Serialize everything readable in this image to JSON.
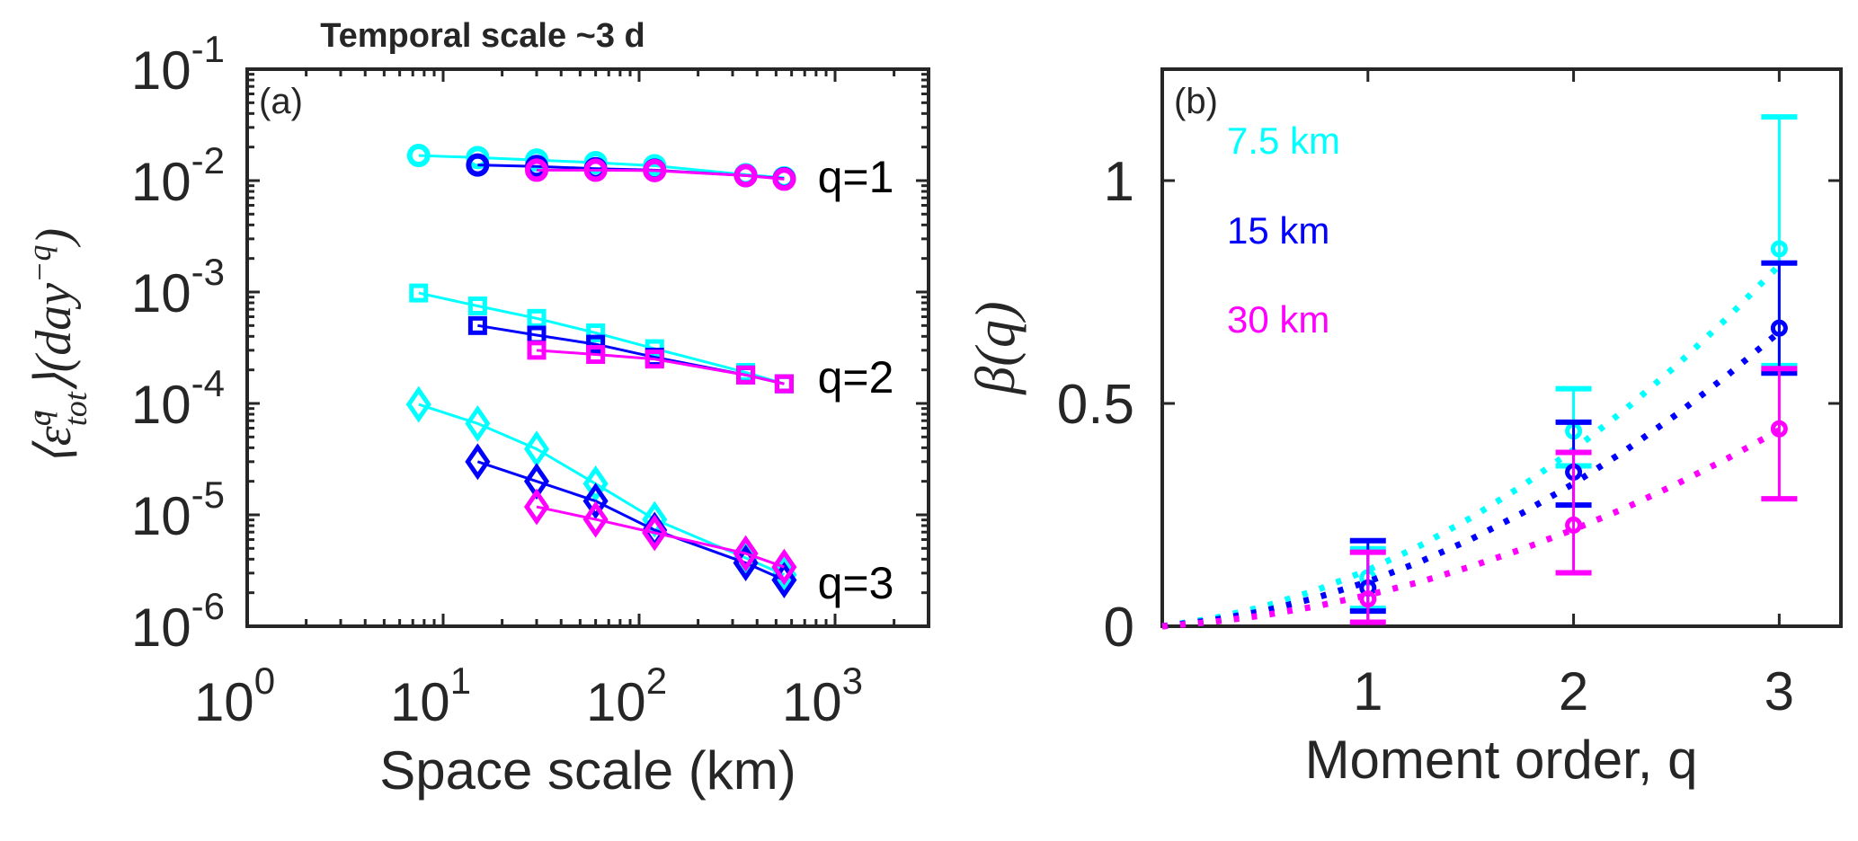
{
  "title": "Temporal scale ~3 d",
  "colors": {
    "7.5 km": "#00FFFF",
    "15 km": "#0000FF",
    "30 km": "#FF00FF",
    "axis": "#262626"
  },
  "chart_data": [
    {
      "panel": "(a)",
      "type": "line",
      "xscale": "log",
      "yscale": "log",
      "xlim": [
        1,
        3000
      ],
      "ylim": [
        1e-06,
        0.1
      ],
      "grid": false,
      "xlabel": "Space scale (km)",
      "ylabel": "⟨ε̇^q_tot⟩(day^−q)",
      "ylabel_parts": [
        {
          "t": "⟨ε̇",
          "r": "base"
        },
        {
          "t": "q",
          "r": "sup"
        },
        {
          "t": "tot",
          "r": "sub"
        },
        {
          "t": "⟩(day",
          "r": "base"
        },
        {
          "t": "−q",
          "r": "sup"
        },
        {
          "t": ")",
          "r": "base"
        }
      ],
      "xticks": [
        {
          "v": 1,
          "base": "10",
          "exp": "0"
        },
        {
          "v": 10,
          "base": "10",
          "exp": "1"
        },
        {
          "v": 100,
          "base": "10",
          "exp": "2"
        },
        {
          "v": 1000,
          "base": "10",
          "exp": "3"
        }
      ],
      "yticks": [
        {
          "v": 0.1,
          "base": "10",
          "exp": "-1"
        },
        {
          "v": 0.01,
          "base": "10",
          "exp": "-2"
        },
        {
          "v": 0.001,
          "base": "10",
          "exp": "-3"
        },
        {
          "v": 0.0001,
          "base": "10",
          "exp": "-4"
        },
        {
          "v": 1e-05,
          "base": "10",
          "exp": "-5"
        },
        {
          "v": 1e-06,
          "base": "10",
          "exp": "-6"
        }
      ],
      "groups": [
        {
          "label": "q=1",
          "marker": "circle",
          "lines": [
            {
              "series": "7.5 km",
              "x": [
                7.5,
                15,
                30,
                60,
                120,
                350,
                550
              ],
              "y": [
                0.0168,
                0.0161,
                0.0153,
                0.0145,
                0.0136,
                0.0113,
                0.0106
              ]
            },
            {
              "series": "15 km",
              "x": [
                15,
                30,
                60,
                120,
                350,
                550
              ],
              "y": [
                0.0138,
                0.0134,
                0.0128,
                0.0124,
                0.0111,
                0.0104
              ]
            },
            {
              "series": "30 km",
              "x": [
                30,
                60,
                120,
                350,
                550
              ],
              "y": [
                0.0124,
                0.0124,
                0.0123,
                0.0111,
                0.0103
              ]
            }
          ]
        },
        {
          "label": "q=2",
          "marker": "square",
          "lines": [
            {
              "series": "7.5 km",
              "x": [
                7.5,
                15,
                30,
                60,
                120,
                350,
                550
              ],
              "y": [
                0.00098,
                0.00075,
                0.00058,
                0.00043,
                0.00031,
                0.00019,
                0.00015
              ]
            },
            {
              "series": "15 km",
              "x": [
                15,
                30,
                60,
                120,
                350,
                550
              ],
              "y": [
                0.0005,
                0.00041,
                0.00034,
                0.00026,
                0.00018,
                0.00015
              ]
            },
            {
              "series": "30 km",
              "x": [
                30,
                60,
                120,
                350,
                550
              ],
              "y": [
                0.0003,
                0.000275,
                0.00025,
                0.00018,
                0.00015
              ]
            }
          ]
        },
        {
          "label": "q=3",
          "marker": "diamond",
          "lines": [
            {
              "series": "7.5 km",
              "x": [
                7.5,
                15,
                30,
                60,
                120,
                350,
                550
              ],
              "y": [
                9.8e-05,
                6.6e-05,
                3.9e-05,
                1.9e-05,
                9.1e-06,
                4.1e-06,
                2.9e-06
              ]
            },
            {
              "series": "15 km",
              "x": [
                15,
                30,
                60,
                120,
                350,
                550
              ],
              "y": [
                3e-05,
                2e-05,
                1.33e-05,
                7.3e-06,
                3.7e-06,
                2.6e-06
              ]
            },
            {
              "series": "30 km",
              "x": [
                30,
                60,
                120,
                350,
                550
              ],
              "y": [
                1.18e-05,
                9.1e-06,
                6.9e-06,
                4.5e-06,
                3.4e-06
              ]
            }
          ]
        }
      ]
    },
    {
      "panel": "(b)",
      "type": "errorbar",
      "xlim": [
        0,
        3.3
      ],
      "ylim": [
        0,
        1.25
      ],
      "grid": false,
      "xlabel": "Moment order, q",
      "ylabel": "β(q)",
      "xticks": [
        {
          "v": 1,
          "label": "1"
        },
        {
          "v": 2,
          "label": "2"
        },
        {
          "v": 3,
          "label": "3"
        }
      ],
      "yticks": [
        {
          "v": 0,
          "label": "0"
        },
        {
          "v": 0.5,
          "label": "0.5"
        },
        {
          "v": 1,
          "label": "1"
        }
      ],
      "legend_placement": "top-left",
      "series": [
        {
          "name": "7.5 km",
          "q": [
            1,
            2,
            3
          ],
          "beta": [
            0.109,
            0.438,
            0.847
          ],
          "lower": [
            0.04,
            0.36,
            0.585
          ],
          "upper": [
            0.174,
            0.533,
            1.143
          ],
          "fit": {
            "q": [
              0,
              0.25,
              0.5,
              0.75,
              1,
              1.25,
              1.5,
              1.75,
              2,
              2.25,
              2.5,
              2.75,
              3
            ],
            "beta": [
              0,
              0.018,
              0.045,
              0.081,
              0.126,
              0.18,
              0.243,
              0.315,
              0.396,
              0.486,
              0.585,
              0.693,
              0.81
            ]
          }
        },
        {
          "name": "15 km",
          "q": [
            1,
            2,
            3
          ],
          "beta": [
            0.086,
            0.346,
            0.669
          ],
          "lower": [
            0.034,
            0.272,
            0.568
          ],
          "upper": [
            0.192,
            0.458,
            0.815
          ],
          "fit": {
            "q": [
              0,
              0.25,
              0.5,
              0.75,
              1,
              1.25,
              1.5,
              1.75,
              2,
              2.25,
              2.5,
              2.75,
              3
            ],
            "beta": [
              0,
              0.014,
              0.035,
              0.064,
              0.1,
              0.144,
              0.195,
              0.254,
              0.32,
              0.394,
              0.475,
              0.564,
              0.66
            ]
          }
        },
        {
          "name": "30 km",
          "q": [
            1,
            2,
            3
          ],
          "beta": [
            0.061,
            0.227,
            0.443
          ],
          "lower": [
            0.009,
            0.12,
            0.286
          ],
          "upper": [
            0.166,
            0.39,
            0.578
          ],
          "fit": {
            "q": [
              0,
              0.25,
              0.5,
              0.75,
              1,
              1.25,
              1.5,
              1.75,
              2,
              2.25,
              2.5,
              2.75,
              3
            ],
            "beta": [
              0,
              0.01,
              0.025,
              0.045,
              0.07,
              0.099,
              0.134,
              0.173,
              0.217,
              0.265,
              0.319,
              0.377,
              0.44
            ]
          }
        }
      ]
    }
  ]
}
